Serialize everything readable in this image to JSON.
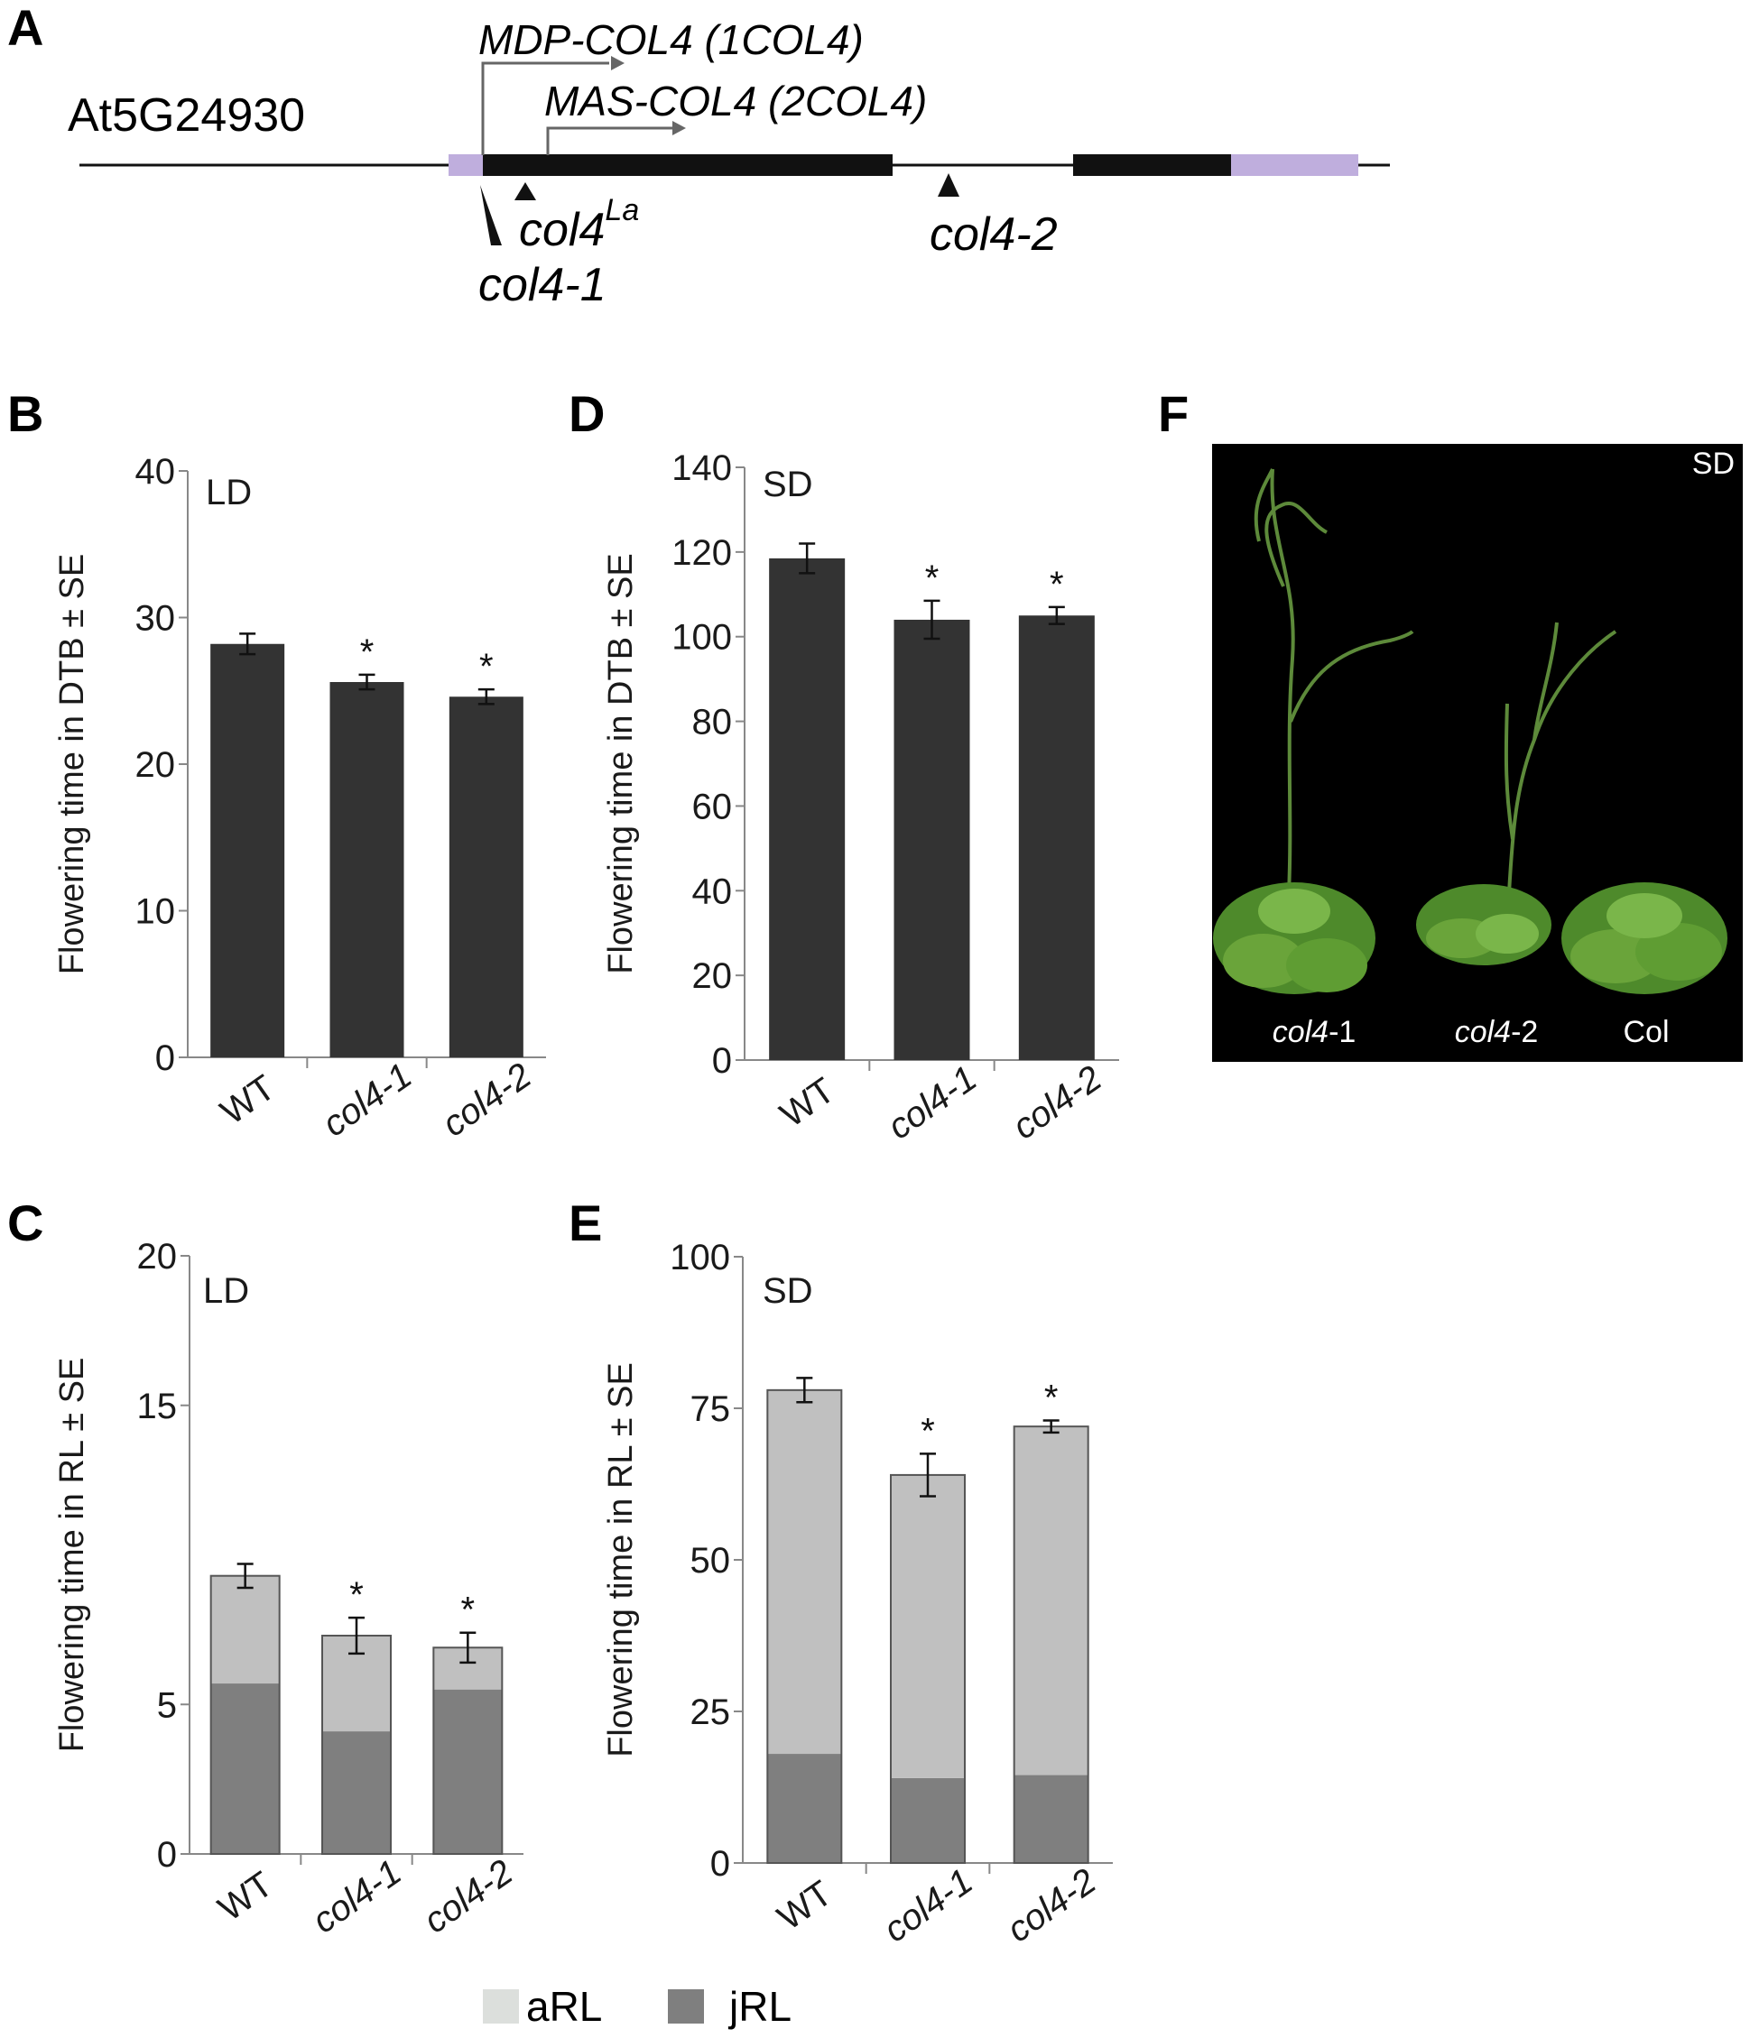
{
  "colors": {
    "bar_dark": "#333333",
    "arl": "#c0c0c0",
    "jrl": "#7f7f7f",
    "utr": "#bfaedd",
    "exon": "#111111",
    "photo_bg": "#000000",
    "axis": "#888888"
  },
  "panel_labels": [
    "A",
    "B",
    "C",
    "D",
    "E",
    "F"
  ],
  "gene_model": {
    "gene_name": "At5G24930",
    "transcripts": [
      "MDP-COL4 (1COL4)",
      "MAS-COL4 (2COL4)"
    ],
    "insertions": [
      {
        "main": "col4",
        "sup": "La"
      },
      {
        "main": "col4-1",
        "sup": ""
      },
      {
        "main": "col4-2",
        "sup": ""
      }
    ]
  },
  "photo": {
    "condition": "SD",
    "plant_labels": [
      {
        "italic": "col4",
        "plain": "-1"
      },
      {
        "italic": "col4",
        "plain": "-2"
      },
      {
        "italic": "",
        "plain": "Col"
      }
    ],
    "icon": "arabidopsis-plants-photo"
  },
  "legend": [
    {
      "label": "aRL",
      "color": "#dcdfdc"
    },
    {
      "label": "jRL",
      "color": "#7f7f7f"
    }
  ],
  "chart_data": [
    {
      "panel": "B",
      "type": "bar",
      "condition": "LD",
      "ylabel": "Flowering time  in DTB ± SE",
      "ylim": [
        0,
        40
      ],
      "yticks": [
        0,
        10,
        20,
        30,
        40
      ],
      "categories": [
        "WT",
        "col4-1",
        "col4-2"
      ],
      "series": [
        {
          "values": [
            28.2,
            25.6,
            24.6
          ],
          "errors": [
            0.7,
            0.5,
            0.5
          ]
        }
      ],
      "significance": [
        "",
        "*",
        "*"
      ]
    },
    {
      "panel": "D",
      "type": "bar",
      "condition": "SD",
      "ylabel": "Flowering time in DTB ± SE",
      "ylim": [
        0,
        140
      ],
      "yticks": [
        0,
        20,
        40,
        60,
        80,
        100,
        120,
        140
      ],
      "categories": [
        "WT",
        "col4-1",
        "col4-2"
      ],
      "series": [
        {
          "values": [
            118.5,
            104,
            105
          ],
          "errors": [
            3.5,
            4.5,
            2
          ]
        }
      ],
      "significance": [
        "",
        "*",
        "*"
      ]
    },
    {
      "panel": "C",
      "type": "bar",
      "stacked": true,
      "condition": "LD",
      "ylabel": "Flowering time in RL ± SE",
      "ylim": [
        0,
        20
      ],
      "yticks": [
        0,
        5,
        15,
        20
      ],
      "tick_labels": [
        "0",
        "5",
        "15",
        "20"
      ],
      "categories": [
        "WT",
        "col4-1",
        "col4-2"
      ],
      "series": [
        {
          "name": "jRL",
          "values": [
            5.7,
            4.1,
            5.5
          ]
        },
        {
          "name": "aRL",
          "values": [
            3.6,
            3.2,
            1.4
          ]
        }
      ],
      "totals": [
        9.3,
        7.3,
        6.9
      ],
      "errors": [
        0.4,
        0.6,
        0.5
      ],
      "significance": [
        "",
        "*",
        "*"
      ]
    },
    {
      "panel": "E",
      "type": "bar",
      "stacked": true,
      "condition": "SD",
      "ylabel": "Flowering time in RL ± SE",
      "ylim": [
        0,
        100
      ],
      "yticks": [
        0,
        25,
        50,
        75,
        100
      ],
      "categories": [
        "WT",
        "col4-1",
        "col4-2"
      ],
      "series": [
        {
          "name": "jRL",
          "values": [
            18,
            14,
            14.5
          ]
        },
        {
          "name": "aRL",
          "values": [
            60,
            50,
            57.5
          ]
        }
      ],
      "totals": [
        78,
        64,
        72
      ],
      "errors": [
        2,
        3.5,
        1
      ],
      "significance": [
        "",
        "*",
        "*"
      ]
    }
  ]
}
